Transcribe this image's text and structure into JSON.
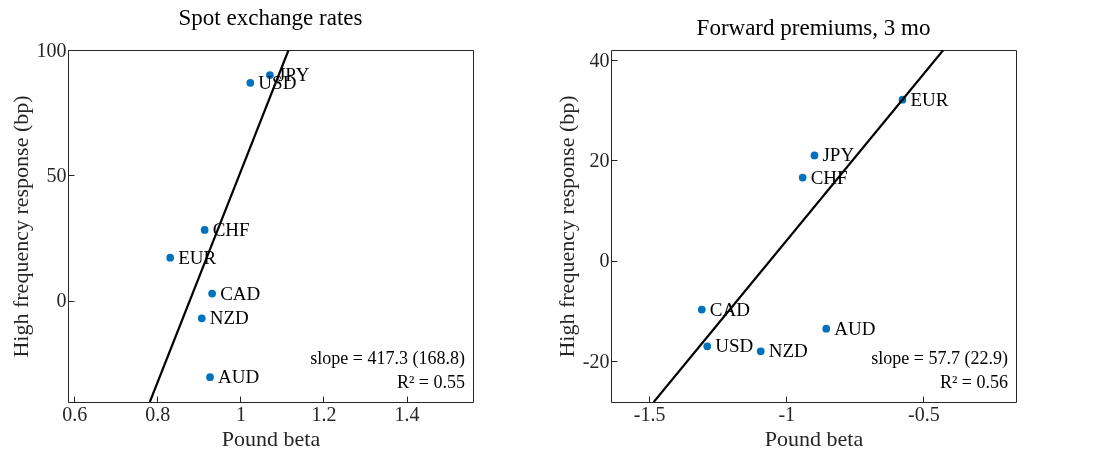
{
  "chart_data": [
    {
      "type": "scatter",
      "title": "Spot exchange rates",
      "xlabel": "Pound beta",
      "ylabel": "High frequency response (bp)",
      "xlim": [
        0.585,
        1.56
      ],
      "ylim": [
        -40.5,
        100
      ],
      "xticks": [
        0.6,
        0.8,
        1,
        1.2,
        1.4
      ],
      "yticks": [
        0,
        50,
        100
      ],
      "grid": false,
      "series": [
        {
          "color": "#0072bd",
          "marker": "circle",
          "x": [
            1.024,
            1.071,
            0.914,
            0.831,
            0.932,
            0.907,
            0.927
          ],
          "values": [
            86.9,
            90,
            28.2,
            17.1,
            2.8,
            -7.1,
            -30.6
          ]
        },
        {
          "type": "line",
          "color": "#000000",
          "x": [
            0.782,
            1.116
          ],
          "values": [
            -40.5,
            100
          ]
        }
      ],
      "annotations": [
        "slope = 417.3 (168.8)",
        "R² = 0.55",
        {
          "text": "USD",
          "x": 1.024,
          "y": 86.9
        },
        {
          "text": "JPY",
          "x": 1.071,
          "y": 90
        },
        {
          "text": "CHF",
          "x": 0.914,
          "y": 28.2
        },
        {
          "text": "EUR",
          "x": 0.831,
          "y": 17.1
        },
        {
          "text": "CAD",
          "x": 0.932,
          "y": 2.8
        },
        {
          "text": "NZD",
          "x": 0.907,
          "y": -7.1
        },
        {
          "text": "AUD",
          "x": 0.927,
          "y": -30.6
        }
      ]
    },
    {
      "type": "scatter",
      "title": "Forward premiums, 3 mo",
      "xlabel": "Pound beta",
      "ylabel": "High frequency response (bp)",
      "xlim": [
        -1.639,
        -0.162
      ],
      "ylim": [
        -28.1,
        42
      ],
      "xticks": [
        -1.5,
        -1,
        -0.5
      ],
      "yticks": [
        -20,
        0,
        20,
        40
      ],
      "grid": false,
      "series": [
        {
          "color": "#0072bd",
          "marker": "circle",
          "x": [
            -0.576,
            -0.897,
            -0.94,
            -1.308,
            -0.854,
            -1.288,
            -1.093
          ],
          "values": [
            32.1,
            21,
            16.6,
            -9.7,
            -13.5,
            -17,
            -18
          ]
        },
        {
          "type": "line",
          "color": "#000000",
          "x": [
            -1.483,
            -0.427
          ],
          "values": [
            -28.1,
            42
          ]
        }
      ],
      "annotations": [
        "slope = 57.7 (22.9)",
        "R² = 0.56",
        {
          "text": "EUR",
          "x": -0.576,
          "y": 32.1
        },
        {
          "text": "JPY",
          "x": -0.897,
          "y": 21
        },
        {
          "text": "CHF",
          "x": -0.94,
          "y": 16.6
        },
        {
          "text": "CAD",
          "x": -1.308,
          "y": -9.7
        },
        {
          "text": "AUD",
          "x": -0.854,
          "y": -13.5
        },
        {
          "text": "USD",
          "x": -1.288,
          "y": -17
        },
        {
          "text": "NZD",
          "x": -1.093,
          "y": -18
        }
      ]
    }
  ]
}
